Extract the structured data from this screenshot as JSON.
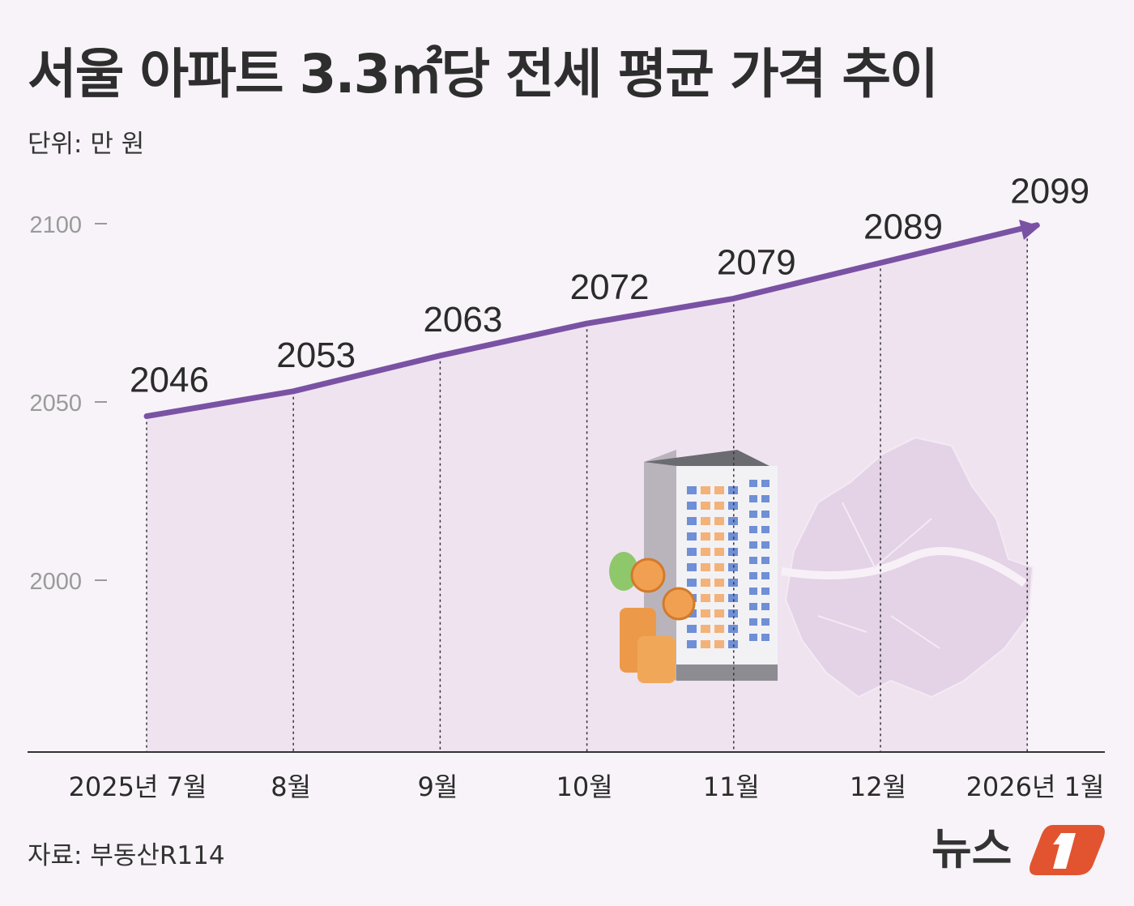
{
  "chart_data": {
    "type": "line",
    "title": "서울 아파트 3.3㎡당 전세 평균 가격 추이",
    "unit_label": "단위: 만 원",
    "categories": [
      "2025년 7월",
      "8월",
      "9월",
      "10월",
      "11월",
      "12월",
      "2026년 1월"
    ],
    "values": [
      2046,
      2053,
      2063,
      2072,
      2079,
      2089,
      2099
    ],
    "data_labels": [
      "2046",
      "2053",
      "2063",
      "2072",
      "2079",
      "2089",
      "2099"
    ],
    "yticks": [
      "2100",
      "2050",
      "2000"
    ],
    "ytick_values": [
      2100,
      2050,
      2000
    ],
    "ylim": [
      1952,
      2105
    ],
    "grid": false,
    "line_color": "#7a52a4",
    "area_color": "#efe3f0",
    "background": "#f7f3f8"
  },
  "source": "자료: 부동산R114",
  "logo": {
    "text": "뉴스1",
    "accent": "#e2532f"
  }
}
